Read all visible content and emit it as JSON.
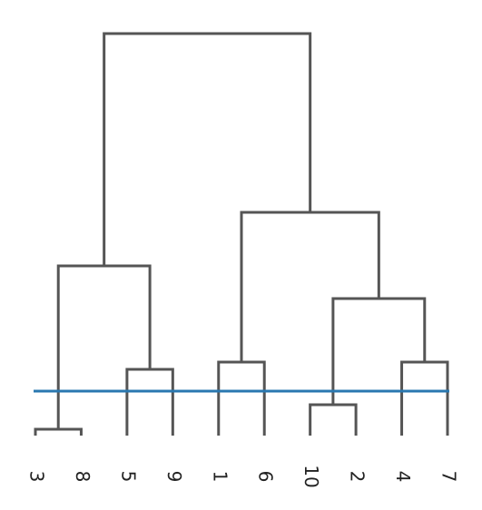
{
  "chart_data": {
    "type": "dendrogram",
    "leaves": [
      "3",
      "8",
      "5",
      "9",
      "1",
      "6",
      "10",
      "2",
      "4",
      "7"
    ],
    "merges": [
      {
        "children": [
          0,
          1
        ],
        "height": 7
      },
      {
        "children": [
          2,
          3
        ],
        "height": 73
      },
      {
        "children": [
          4,
          5
        ],
        "height": 81
      },
      {
        "children": [
          6,
          7
        ],
        "height": 34
      },
      {
        "children": [
          8,
          9
        ],
        "height": 81
      },
      {
        "children": [
          10,
          11
        ],
        "height": 187
      },
      {
        "children": [
          13,
          14
        ],
        "height": 151
      },
      {
        "children": [
          12,
          16
        ],
        "height": 246
      },
      {
        "children": [
          15,
          17
        ],
        "height": 443
      }
    ],
    "ylim": [
      0,
      443
    ],
    "color": "#555555",
    "threshold": 49,
    "threshold_color": "#2a78b0"
  }
}
